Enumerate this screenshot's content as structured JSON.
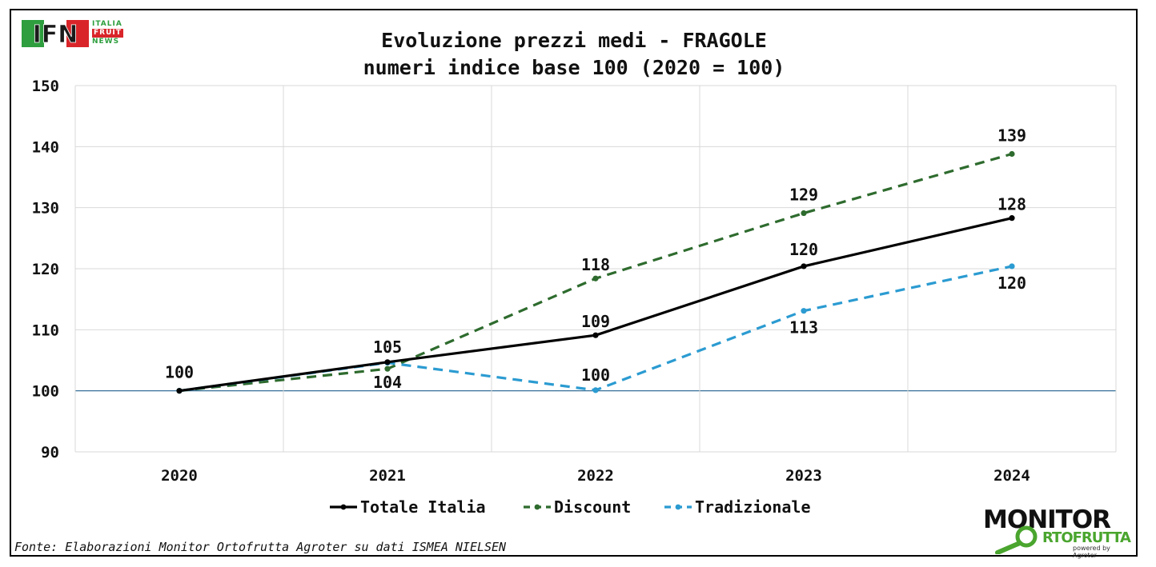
{
  "header": {
    "title_line1": "Evoluzione prezzi medi - FRAGOLE",
    "title_line2": "numeri indice base 100 (2020 = 100)"
  },
  "logos": {
    "ifn": {
      "main": "IFN",
      "side_line1": "ITALIA",
      "side_line2": "FRUIT",
      "side_line3": "NEWS"
    },
    "monitor": {
      "top": "MONITOR",
      "bottom": "RTOFRUTTA",
      "powered": "powered by Agroter"
    }
  },
  "footer": {
    "source": "Fonte: Elaborazioni Monitor Ortofrutta Agroter su dati ISMEA NIELSEN"
  },
  "colors": {
    "totale": "#000000",
    "discount": "#2e6b2e",
    "tradizionale": "#2b9bd1",
    "baseline": "#1f5f8b",
    "grid": "#d9d9d9"
  },
  "chart_data": {
    "type": "line",
    "categories": [
      "2020",
      "2021",
      "2022",
      "2023",
      "2024"
    ],
    "ylim": [
      90,
      150
    ],
    "yticks": [
      90,
      100,
      110,
      120,
      130,
      140,
      150
    ],
    "ytick_labels": [
      "90",
      "100",
      "110",
      "120",
      "130",
      "140",
      "150"
    ],
    "grid": true,
    "legend_position": "bottom",
    "series": [
      {
        "name": "Totale Italia",
        "values": [
          100,
          104.7,
          109.1,
          120.4,
          128.3
        ],
        "labels": [
          "100",
          "105",
          "109",
          "120",
          "128"
        ],
        "style": "solid",
        "color": "#000000"
      },
      {
        "name": "Discount",
        "values": [
          100,
          103.6,
          118.4,
          129.1,
          138.8
        ],
        "labels": [
          "",
          "104",
          "118",
          "129",
          "139"
        ],
        "style": "dashed",
        "color": "#2e6b2e"
      },
      {
        "name": "Tradizionale",
        "values": [
          100,
          104.6,
          100.1,
          113.1,
          120.4
        ],
        "labels": [
          "",
          "",
          "100",
          "113",
          "120"
        ],
        "style": "dashed",
        "color": "#2b9bd1"
      }
    ]
  }
}
